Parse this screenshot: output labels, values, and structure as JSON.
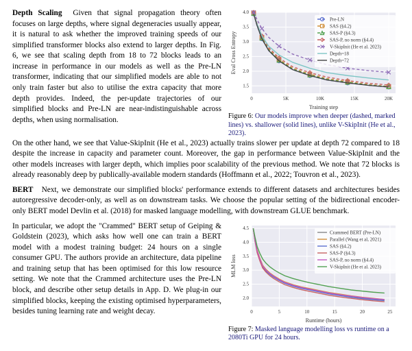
{
  "block1": {
    "heading": "Depth Scaling",
    "body": "Given that signal propagation theory often focuses on large depths, where signal degeneracies usually appear, it is natural to ask whether the improved training speeds of our simplified transformer blocks also extend to larger depths. In Fig. 6, we see that scaling depth from 18 to 72 blocks leads to an increase in performance in our models as well as the Pre-LN transformer, indicating that our simplified models are able to not only train faster but also to utilise the extra capacity that more depth provides. Indeed, the per-update trajectories of our simplified blocks and Pre-LN are near-indistinguishable across depths, when using normalisation."
  },
  "middle": "On the other hand, we see that Value-SkipInit (He et al., 2023) actually trains slower per update at depth 72 compared to 18 despite the increase in capacity and parameter count. Moreover, the gap in performance between Value-SkipInit and the other models increases with larger depth, which implies poor scalability of the previous method. We note that 72 blocks is already reasonably deep by publically-available modern standards (Hoffmann et al., 2022; Touvron et al., 2023).",
  "block2": {
    "heading": "BERT",
    "body": "Next, we demonstrate our simplified blocks' performance extends to different datasets and architectures besides autoregressive decoder-only, as well as on downstream tasks. We choose the popular setting of the bidirectional encoder-only BERT model Devlin et al. (2018) for masked language modelling, with downstream GLUE benchmark."
  },
  "block3": "In particular, we adopt the \"Crammed\" BERT setup of Geiping & Goldstein (2023), which asks how well one can train a BERT model with a modest training budget: 24 hours on a single consumer GPU. The authors provide an architecture, data pipeline and training setup that has been optimised for this low resource setting. We note that the Crammed architecture uses the Pre-LN block, and describe other setup details in App. D. We plug-in our simplified blocks, keeping the existing optimised hyperparameters, besides tuning learning rate and weight decay.",
  "fig6": {
    "caption_label": "Figure 6:",
    "caption": "Our models improve when deeper (dashed, marked lines) vs. shallower (solid lines), unlike V-SkipInit (He et al., 2023).",
    "xlabel": "Training step",
    "ylabel": "Eval Cross Entropy",
    "x_ticks": [
      0,
      5000,
      10000,
      15000,
      20000
    ],
    "x_tick_labels": [
      "0",
      "5K",
      "10K",
      "15K",
      "20K"
    ],
    "y_ticks": [
      1.5,
      2.0,
      2.5,
      3.0,
      3.5,
      4.0
    ],
    "xlim": [
      0,
      21000
    ],
    "ylim": [
      1.25,
      4.0
    ],
    "background_color": "#eaeaf2",
    "grid_color": "#ffffff",
    "series": [
      {
        "name": "Pre-LN",
        "color": "#5b6fcf",
        "marker": "circle",
        "dash": "4 3",
        "x": [
          300,
          800,
          1500,
          2500,
          4000,
          6000,
          8500,
          11000,
          14000,
          17000,
          20000
        ],
        "y": [
          3.95,
          3.55,
          3.1,
          2.7,
          2.35,
          2.05,
          1.85,
          1.7,
          1.6,
          1.52,
          1.46
        ]
      },
      {
        "name": "SAS (§4.2)",
        "color": "#d18f3a",
        "marker": "square",
        "dash": "4 3",
        "x": [
          300,
          800,
          1500,
          2500,
          4000,
          6000,
          8500,
          11000,
          14000,
          17000,
          20000
        ],
        "y": [
          3.98,
          3.58,
          3.15,
          2.75,
          2.4,
          2.1,
          1.9,
          1.75,
          1.64,
          1.55,
          1.48
        ]
      },
      {
        "name": "SAS-P (§4.3)",
        "color": "#52a152",
        "marker": "triangle",
        "dash": "4 3",
        "x": [
          300,
          800,
          1500,
          2500,
          4000,
          6000,
          8500,
          11000,
          14000,
          17000,
          20000
        ],
        "y": [
          3.96,
          3.57,
          3.12,
          2.72,
          2.37,
          2.07,
          1.87,
          1.72,
          1.62,
          1.53,
          1.47
        ]
      },
      {
        "name": "SAS-P, no norm (§4.4)",
        "color": "#c86262",
        "marker": "diamond",
        "dash": "4 3",
        "x": [
          300,
          800,
          1500,
          2500,
          4000,
          6000,
          8500,
          11000,
          14000,
          17000,
          20000
        ],
        "y": [
          4.0,
          3.62,
          3.2,
          2.8,
          2.45,
          2.15,
          1.95,
          1.8,
          1.68,
          1.59,
          1.53
        ]
      },
      {
        "name": "V-SkipInit (He et al. 2023)",
        "color": "#9170b9",
        "marker": "x",
        "dash": "4 3",
        "x": [
          300,
          800,
          1500,
          2500,
          4000,
          6000,
          8500,
          11000,
          14000,
          17000,
          20000
        ],
        "y": [
          4.0,
          3.75,
          3.45,
          3.15,
          2.85,
          2.58,
          2.38,
          2.22,
          2.1,
          2.02,
          1.96
        ]
      },
      {
        "name": "Depth=18",
        "color": "#7ec6c6",
        "marker": "none",
        "dash": "none",
        "x": [
          300,
          800,
          1500,
          2500,
          4000,
          6000,
          8500,
          11000,
          14000,
          17000,
          20000
        ],
        "y": [
          3.95,
          3.6,
          3.2,
          2.85,
          2.55,
          2.3,
          2.1,
          1.95,
          1.85,
          1.77,
          1.7
        ]
      },
      {
        "name": "Depth=72",
        "color": "#444444",
        "marker": "none",
        "dash": "none",
        "x": [
          300,
          800,
          1500,
          2500,
          4000,
          6000,
          8500,
          11000,
          14000,
          17000,
          20000
        ],
        "y": [
          3.95,
          3.55,
          3.1,
          2.7,
          2.35,
          2.05,
          1.85,
          1.7,
          1.6,
          1.52,
          1.46
        ]
      }
    ]
  },
  "fig7": {
    "caption_label": "Figure 7:",
    "caption": "Masked language modelling loss vs runtime on a 2080Ti GPU for 24 hours.",
    "xlabel": "Runtime (hours)",
    "ylabel": "MLM loss",
    "x_ticks": [
      0,
      5,
      10,
      15,
      20,
      25
    ],
    "y_ticks": [
      2.0,
      2.5,
      3.0,
      3.5,
      4.0,
      4.5
    ],
    "xlim": [
      0,
      26
    ],
    "ylim": [
      1.7,
      4.6
    ],
    "background_color": "#eaeaf2",
    "grid_color": "#ffffff",
    "series": [
      {
        "name": "Crammed BERT (Pre-LN)",
        "color": "#888888",
        "x": [
          0.3,
          0.6,
          1,
          1.5,
          2,
          2.6,
          3.3,
          4,
          5,
          6,
          7.5,
          9,
          10.5,
          12,
          14,
          16,
          18,
          20,
          22,
          24
        ],
        "y": [
          4.5,
          4.1,
          3.7,
          3.4,
          3.15,
          3.0,
          2.88,
          2.78,
          2.66,
          2.56,
          2.46,
          2.38,
          2.32,
          2.26,
          2.18,
          2.12,
          2.06,
          2.01,
          1.97,
          1.94
        ]
      },
      {
        "name": "Parallel (Wang et al, 2021)",
        "color": "#d18f3a",
        "x": [
          0.3,
          0.6,
          1,
          1.5,
          2,
          2.6,
          3.3,
          4,
          5,
          6,
          7.5,
          9,
          10.5,
          12,
          14,
          16,
          18,
          20,
          22,
          24
        ],
        "y": [
          4.5,
          4.12,
          3.73,
          3.43,
          3.18,
          3.03,
          2.9,
          2.8,
          2.68,
          2.58,
          2.48,
          2.4,
          2.34,
          2.28,
          2.2,
          2.14,
          2.08,
          2.03,
          1.99,
          1.95
        ]
      },
      {
        "name": "SAS (§4.2)",
        "color": "#5b6fcf",
        "x": [
          0.3,
          0.6,
          1,
          1.5,
          2,
          2.6,
          3.3,
          4,
          5,
          6,
          7.5,
          9,
          10.5,
          12,
          14,
          16,
          18,
          20,
          22,
          24
        ],
        "y": [
          4.5,
          4.08,
          3.68,
          3.38,
          3.12,
          2.97,
          2.85,
          2.75,
          2.63,
          2.53,
          2.43,
          2.35,
          2.29,
          2.23,
          2.15,
          2.09,
          2.03,
          1.98,
          1.94,
          1.91
        ]
      },
      {
        "name": "SAS-P (§4.3)",
        "color": "#c86262",
        "x": [
          0.3,
          0.6,
          1,
          1.5,
          2,
          2.6,
          3.3,
          4,
          5,
          6,
          7.5,
          9,
          10.5,
          12,
          14,
          16,
          18,
          20,
          22,
          24
        ],
        "y": [
          4.5,
          4.05,
          3.63,
          3.33,
          3.08,
          2.93,
          2.8,
          2.7,
          2.58,
          2.48,
          2.38,
          2.3,
          2.24,
          2.18,
          2.1,
          2.04,
          1.99,
          1.94,
          1.9,
          1.87
        ]
      },
      {
        "name": "SAS-P, no norm (§4.4)",
        "color": "#c259c2",
        "x": [
          0.3,
          0.6,
          1,
          1.5,
          2,
          2.6,
          3.3,
          4,
          5,
          6,
          7.5,
          9,
          10.5,
          12,
          14,
          16,
          18,
          20,
          22,
          24
        ],
        "y": [
          4.5,
          4.1,
          3.7,
          3.4,
          3.15,
          3.0,
          2.88,
          2.78,
          2.66,
          2.56,
          2.46,
          2.38,
          2.32,
          2.26,
          2.18,
          2.12,
          2.07,
          2.02,
          1.98,
          1.95
        ]
      },
      {
        "name": "V-SkipInit (He et al. 2023)",
        "color": "#52a152",
        "x": [
          0.3,
          0.6,
          1,
          1.5,
          2,
          2.6,
          3.3,
          4,
          5,
          6,
          7.5,
          9,
          10.5,
          12,
          14,
          16,
          18,
          20,
          22,
          24
        ],
        "y": [
          4.5,
          4.2,
          3.85,
          3.6,
          3.4,
          3.25,
          3.12,
          3.02,
          2.9,
          2.8,
          2.7,
          2.62,
          2.55,
          2.49,
          2.41,
          2.35,
          2.29,
          2.25,
          2.21,
          2.18
        ]
      }
    ]
  }
}
